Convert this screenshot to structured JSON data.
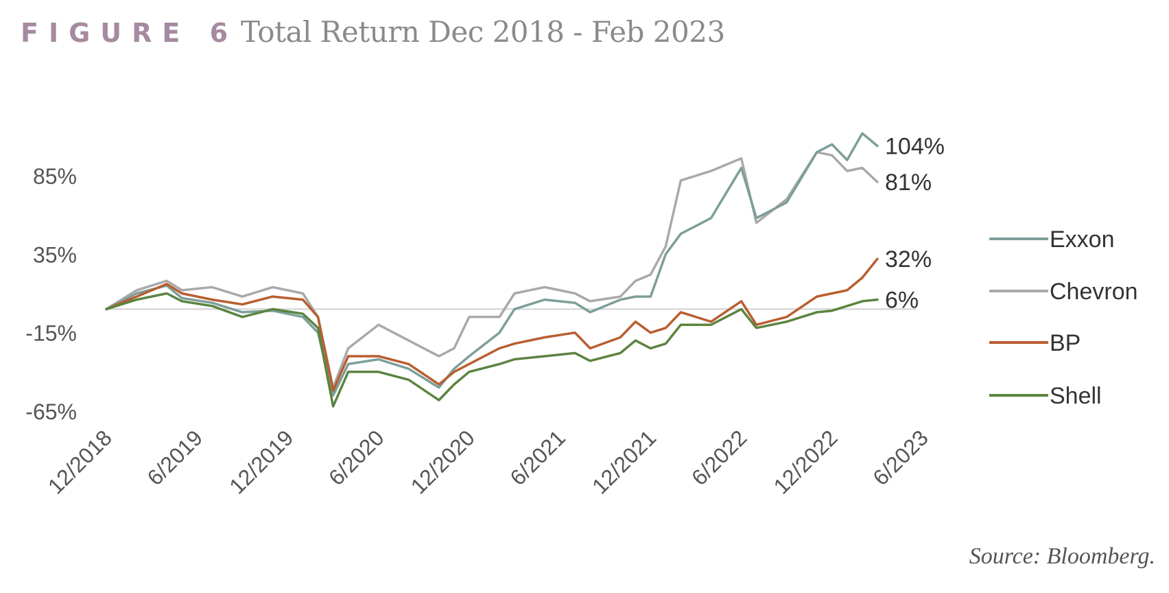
{
  "figure": {
    "label": "FIGURE 6",
    "title": "Total Return Dec 2018 - Feb 2023"
  },
  "source": "Source: Bloomberg.",
  "chart_data": {
    "type": "line",
    "title": "Total Return Dec 2018 - Feb 2023",
    "xlabel": "",
    "ylabel": "",
    "x_range": [
      "2018-12",
      "2023-06"
    ],
    "x_ticks": [
      "12/2018",
      "6/2019",
      "12/2019",
      "6/2020",
      "12/2020",
      "6/2021",
      "12/2021",
      "6/2022",
      "12/2022",
      "6/2023"
    ],
    "ylim": [
      -65,
      104
    ],
    "y_ticks": [
      "85%",
      "35%",
      "-15%",
      "-65%"
    ],
    "y_tick_values": [
      85,
      35,
      -15,
      -65
    ],
    "reference_line": 0,
    "legend_position": "right",
    "series": [
      {
        "name": "Exxon",
        "color": "#7d9e99",
        "end_label": "104%",
        "points": [
          [
            "2018-12",
            0
          ],
          [
            "2019-02",
            10
          ],
          [
            "2019-04",
            15
          ],
          [
            "2019-05",
            7
          ],
          [
            "2019-07",
            4
          ],
          [
            "2019-09",
            -2
          ],
          [
            "2019-11",
            -1
          ],
          [
            "2020-01",
            -5
          ],
          [
            "2020-02",
            -15
          ],
          [
            "2020-03",
            -55
          ],
          [
            "2020-04",
            -35
          ],
          [
            "2020-06",
            -32
          ],
          [
            "2020-08",
            -38
          ],
          [
            "2020-10",
            -50
          ],
          [
            "2020-11",
            -38
          ],
          [
            "2020-12",
            -30
          ],
          [
            "2021-02",
            -15
          ],
          [
            "2021-03",
            0
          ],
          [
            "2021-05",
            6
          ],
          [
            "2021-07",
            4
          ],
          [
            "2021-08",
            -2
          ],
          [
            "2021-10",
            6
          ],
          [
            "2021-11",
            8
          ],
          [
            "2021-12",
            8
          ],
          [
            "2022-01",
            35
          ],
          [
            "2022-02",
            48
          ],
          [
            "2022-04",
            58
          ],
          [
            "2022-06",
            90
          ],
          [
            "2022-07",
            58
          ],
          [
            "2022-09",
            68
          ],
          [
            "2022-11",
            100
          ],
          [
            "2022-12",
            105
          ],
          [
            "2023-01",
            95
          ],
          [
            "2023-02",
            112
          ],
          [
            "2023-03",
            104
          ]
        ]
      },
      {
        "name": "Chevron",
        "color": "#a9a9a9",
        "end_label": "81%",
        "points": [
          [
            "2018-12",
            0
          ],
          [
            "2019-02",
            12
          ],
          [
            "2019-04",
            18
          ],
          [
            "2019-05",
            12
          ],
          [
            "2019-07",
            14
          ],
          [
            "2019-09",
            8
          ],
          [
            "2019-11",
            14
          ],
          [
            "2020-01",
            10
          ],
          [
            "2020-02",
            -5
          ],
          [
            "2020-03",
            -50
          ],
          [
            "2020-04",
            -25
          ],
          [
            "2020-06",
            -10
          ],
          [
            "2020-08",
            -20
          ],
          [
            "2020-10",
            -30
          ],
          [
            "2020-11",
            -25
          ],
          [
            "2020-12",
            -5
          ],
          [
            "2021-02",
            -5
          ],
          [
            "2021-03",
            10
          ],
          [
            "2021-05",
            14
          ],
          [
            "2021-07",
            10
          ],
          [
            "2021-08",
            5
          ],
          [
            "2021-10",
            8
          ],
          [
            "2021-11",
            18
          ],
          [
            "2021-12",
            22
          ],
          [
            "2022-01",
            40
          ],
          [
            "2022-02",
            82
          ],
          [
            "2022-04",
            88
          ],
          [
            "2022-06",
            96
          ],
          [
            "2022-07",
            55
          ],
          [
            "2022-09",
            70
          ],
          [
            "2022-11",
            100
          ],
          [
            "2022-12",
            98
          ],
          [
            "2023-01",
            88
          ],
          [
            "2023-02",
            90
          ],
          [
            "2023-03",
            81
          ]
        ]
      },
      {
        "name": "BP",
        "color": "#b95e30",
        "end_label": "32%",
        "points": [
          [
            "2018-12",
            0
          ],
          [
            "2019-02",
            8
          ],
          [
            "2019-04",
            16
          ],
          [
            "2019-05",
            10
          ],
          [
            "2019-07",
            6
          ],
          [
            "2019-09",
            3
          ],
          [
            "2019-11",
            8
          ],
          [
            "2020-01",
            6
          ],
          [
            "2020-02",
            -5
          ],
          [
            "2020-03",
            -52
          ],
          [
            "2020-04",
            -30
          ],
          [
            "2020-06",
            -30
          ],
          [
            "2020-08",
            -35
          ],
          [
            "2020-10",
            -48
          ],
          [
            "2020-11",
            -40
          ],
          [
            "2020-12",
            -35
          ],
          [
            "2021-02",
            -25
          ],
          [
            "2021-03",
            -22
          ],
          [
            "2021-05",
            -18
          ],
          [
            "2021-07",
            -15
          ],
          [
            "2021-08",
            -25
          ],
          [
            "2021-10",
            -18
          ],
          [
            "2021-11",
            -8
          ],
          [
            "2021-12",
            -15
          ],
          [
            "2022-01",
            -12
          ],
          [
            "2022-02",
            -2
          ],
          [
            "2022-04",
            -8
          ],
          [
            "2022-06",
            5
          ],
          [
            "2022-07",
            -10
          ],
          [
            "2022-09",
            -5
          ],
          [
            "2022-11",
            8
          ],
          [
            "2022-12",
            10
          ],
          [
            "2023-01",
            12
          ],
          [
            "2023-02",
            20
          ],
          [
            "2023-03",
            32
          ]
        ]
      },
      {
        "name": "Shell",
        "color": "#5b8440",
        "end_label": "6%",
        "points": [
          [
            "2018-12",
            0
          ],
          [
            "2019-02",
            6
          ],
          [
            "2019-04",
            10
          ],
          [
            "2019-05",
            5
          ],
          [
            "2019-07",
            2
          ],
          [
            "2019-09",
            -5
          ],
          [
            "2019-11",
            0
          ],
          [
            "2020-01",
            -3
          ],
          [
            "2020-02",
            -12
          ],
          [
            "2020-03",
            -62
          ],
          [
            "2020-04",
            -40
          ],
          [
            "2020-06",
            -40
          ],
          [
            "2020-08",
            -45
          ],
          [
            "2020-10",
            -58
          ],
          [
            "2020-11",
            -48
          ],
          [
            "2020-12",
            -40
          ],
          [
            "2021-02",
            -35
          ],
          [
            "2021-03",
            -32
          ],
          [
            "2021-05",
            -30
          ],
          [
            "2021-07",
            -28
          ],
          [
            "2021-08",
            -33
          ],
          [
            "2021-10",
            -28
          ],
          [
            "2021-11",
            -20
          ],
          [
            "2021-12",
            -25
          ],
          [
            "2022-01",
            -22
          ],
          [
            "2022-02",
            -10
          ],
          [
            "2022-04",
            -10
          ],
          [
            "2022-06",
            0
          ],
          [
            "2022-07",
            -12
          ],
          [
            "2022-09",
            -8
          ],
          [
            "2022-11",
            -2
          ],
          [
            "2022-12",
            -1
          ],
          [
            "2023-01",
            2
          ],
          [
            "2023-02",
            5
          ],
          [
            "2023-03",
            6
          ]
        ]
      }
    ]
  }
}
